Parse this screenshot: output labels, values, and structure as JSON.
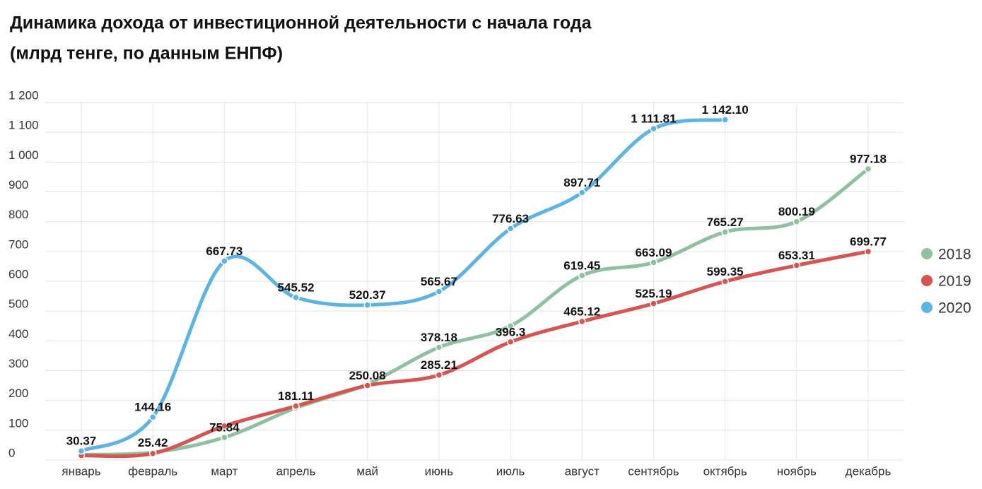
{
  "chart_data": {
    "type": "line",
    "title": "Динамика дохода от инвестиционной деятельности с начала года",
    "subtitle": "(млрд тенге, по данным ЕНПФ)",
    "categories": [
      "январь",
      "февраль",
      "март",
      "апрель",
      "май",
      "июнь",
      "июль",
      "август",
      "сентябрь",
      "октябрь",
      "ноябрь",
      "декабрь"
    ],
    "series": [
      {
        "name": "2018",
        "color": "#8fc1a0",
        "values": [
          18,
          25.42,
          75.84,
          175,
          255,
          378.18,
          450,
          619.45,
          663.09,
          765.27,
          800.19,
          977.18
        ],
        "value_labels": [
          null,
          "25.42",
          "75.84",
          null,
          null,
          "378.18",
          null,
          "619.45",
          "663.09",
          "765.27",
          "800.19",
          "977.18"
        ]
      },
      {
        "name": "2019",
        "color": "#d9534f",
        "values": [
          15,
          22,
          114,
          181.11,
          250.08,
          285.21,
          396.3,
          465.12,
          525.19,
          599.35,
          653.31,
          699.77
        ],
        "value_labels": [
          null,
          null,
          null,
          "181.11",
          "250.08",
          "285.21",
          "396.3",
          "465.12",
          "525.19",
          "599.35",
          "653.31",
          "699.77"
        ]
      },
      {
        "name": "2020",
        "color": "#5ab4e5",
        "values": [
          30.37,
          144.16,
          667.73,
          545.52,
          520.37,
          565.67,
          776.63,
          897.71,
          1111.81,
          1142.1,
          null,
          null
        ],
        "value_labels": [
          "30.37",
          "144.16",
          "667.73",
          "545.52",
          "520.37",
          "565.67",
          "776.63",
          "897.71",
          "1 111.81",
          "1 142.10",
          null,
          null
        ]
      }
    ],
    "ylim": [
      0,
      1200
    ],
    "yticks": [
      0,
      100,
      200,
      300,
      400,
      500,
      600,
      700,
      800,
      900,
      {
        "value": 1000,
        "label": "1 000"
      },
      {
        "value": 1100,
        "label": "1 100"
      },
      {
        "value": 1200,
        "label": "1 200"
      }
    ],
    "grid": true,
    "legend": "right"
  }
}
